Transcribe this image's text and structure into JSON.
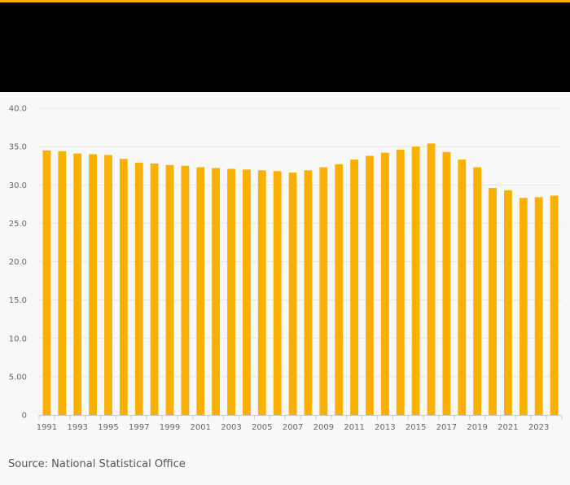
{
  "colors": {
    "bar": "#f9b000",
    "header_background": "#000000",
    "header_accent": "#f5b000",
    "grid": "#e6e6e6",
    "axis": "#cccccc",
    "page_background": "#f8f8f8"
  },
  "source_text": "Source: National Statistical Office",
  "chart_data": {
    "type": "bar",
    "title": "",
    "xlabel": "",
    "ylabel": "",
    "grid": true,
    "legend": "none",
    "ylim": [
      0,
      40
    ],
    "y_ticks": [
      {
        "value": 0,
        "label": "0"
      },
      {
        "value": 5,
        "label": "5.00"
      },
      {
        "value": 10,
        "label": "10.0"
      },
      {
        "value": 15,
        "label": "15.0"
      },
      {
        "value": 20,
        "label": "20.0"
      },
      {
        "value": 25,
        "label": "25.0"
      },
      {
        "value": 30,
        "label": "30.0"
      },
      {
        "value": 35,
        "label": "35.0"
      },
      {
        "value": 40,
        "label": "40.0"
      }
    ],
    "x_tick_labels": [
      "1991",
      "1993",
      "1995",
      "1997",
      "1999",
      "2001",
      "2003",
      "2005",
      "2007",
      "2009",
      "2011",
      "2013",
      "2015",
      "2017",
      "2019",
      "2021",
      "2023"
    ],
    "categories": [
      "1991",
      "1992",
      "1993",
      "1994",
      "1995",
      "1996",
      "1997",
      "1998",
      "1999",
      "2000",
      "2001",
      "2002",
      "2003",
      "2004",
      "2005",
      "2006",
      "2007",
      "2008",
      "2009",
      "2010",
      "2011",
      "2012",
      "2013",
      "2014",
      "2015",
      "2016",
      "2017",
      "2018",
      "2019",
      "2020",
      "2021",
      "2022",
      "2023",
      "2024"
    ],
    "values": [
      34.5,
      34.4,
      34.1,
      34.0,
      33.9,
      33.4,
      32.9,
      32.8,
      32.6,
      32.5,
      32.3,
      32.2,
      32.1,
      32.0,
      31.9,
      31.8,
      31.6,
      31.9,
      32.3,
      32.7,
      33.3,
      33.8,
      34.2,
      34.6,
      35.0,
      35.4,
      34.3,
      33.3,
      32.3,
      29.6,
      29.3,
      28.3,
      28.4,
      28.6
    ]
  }
}
